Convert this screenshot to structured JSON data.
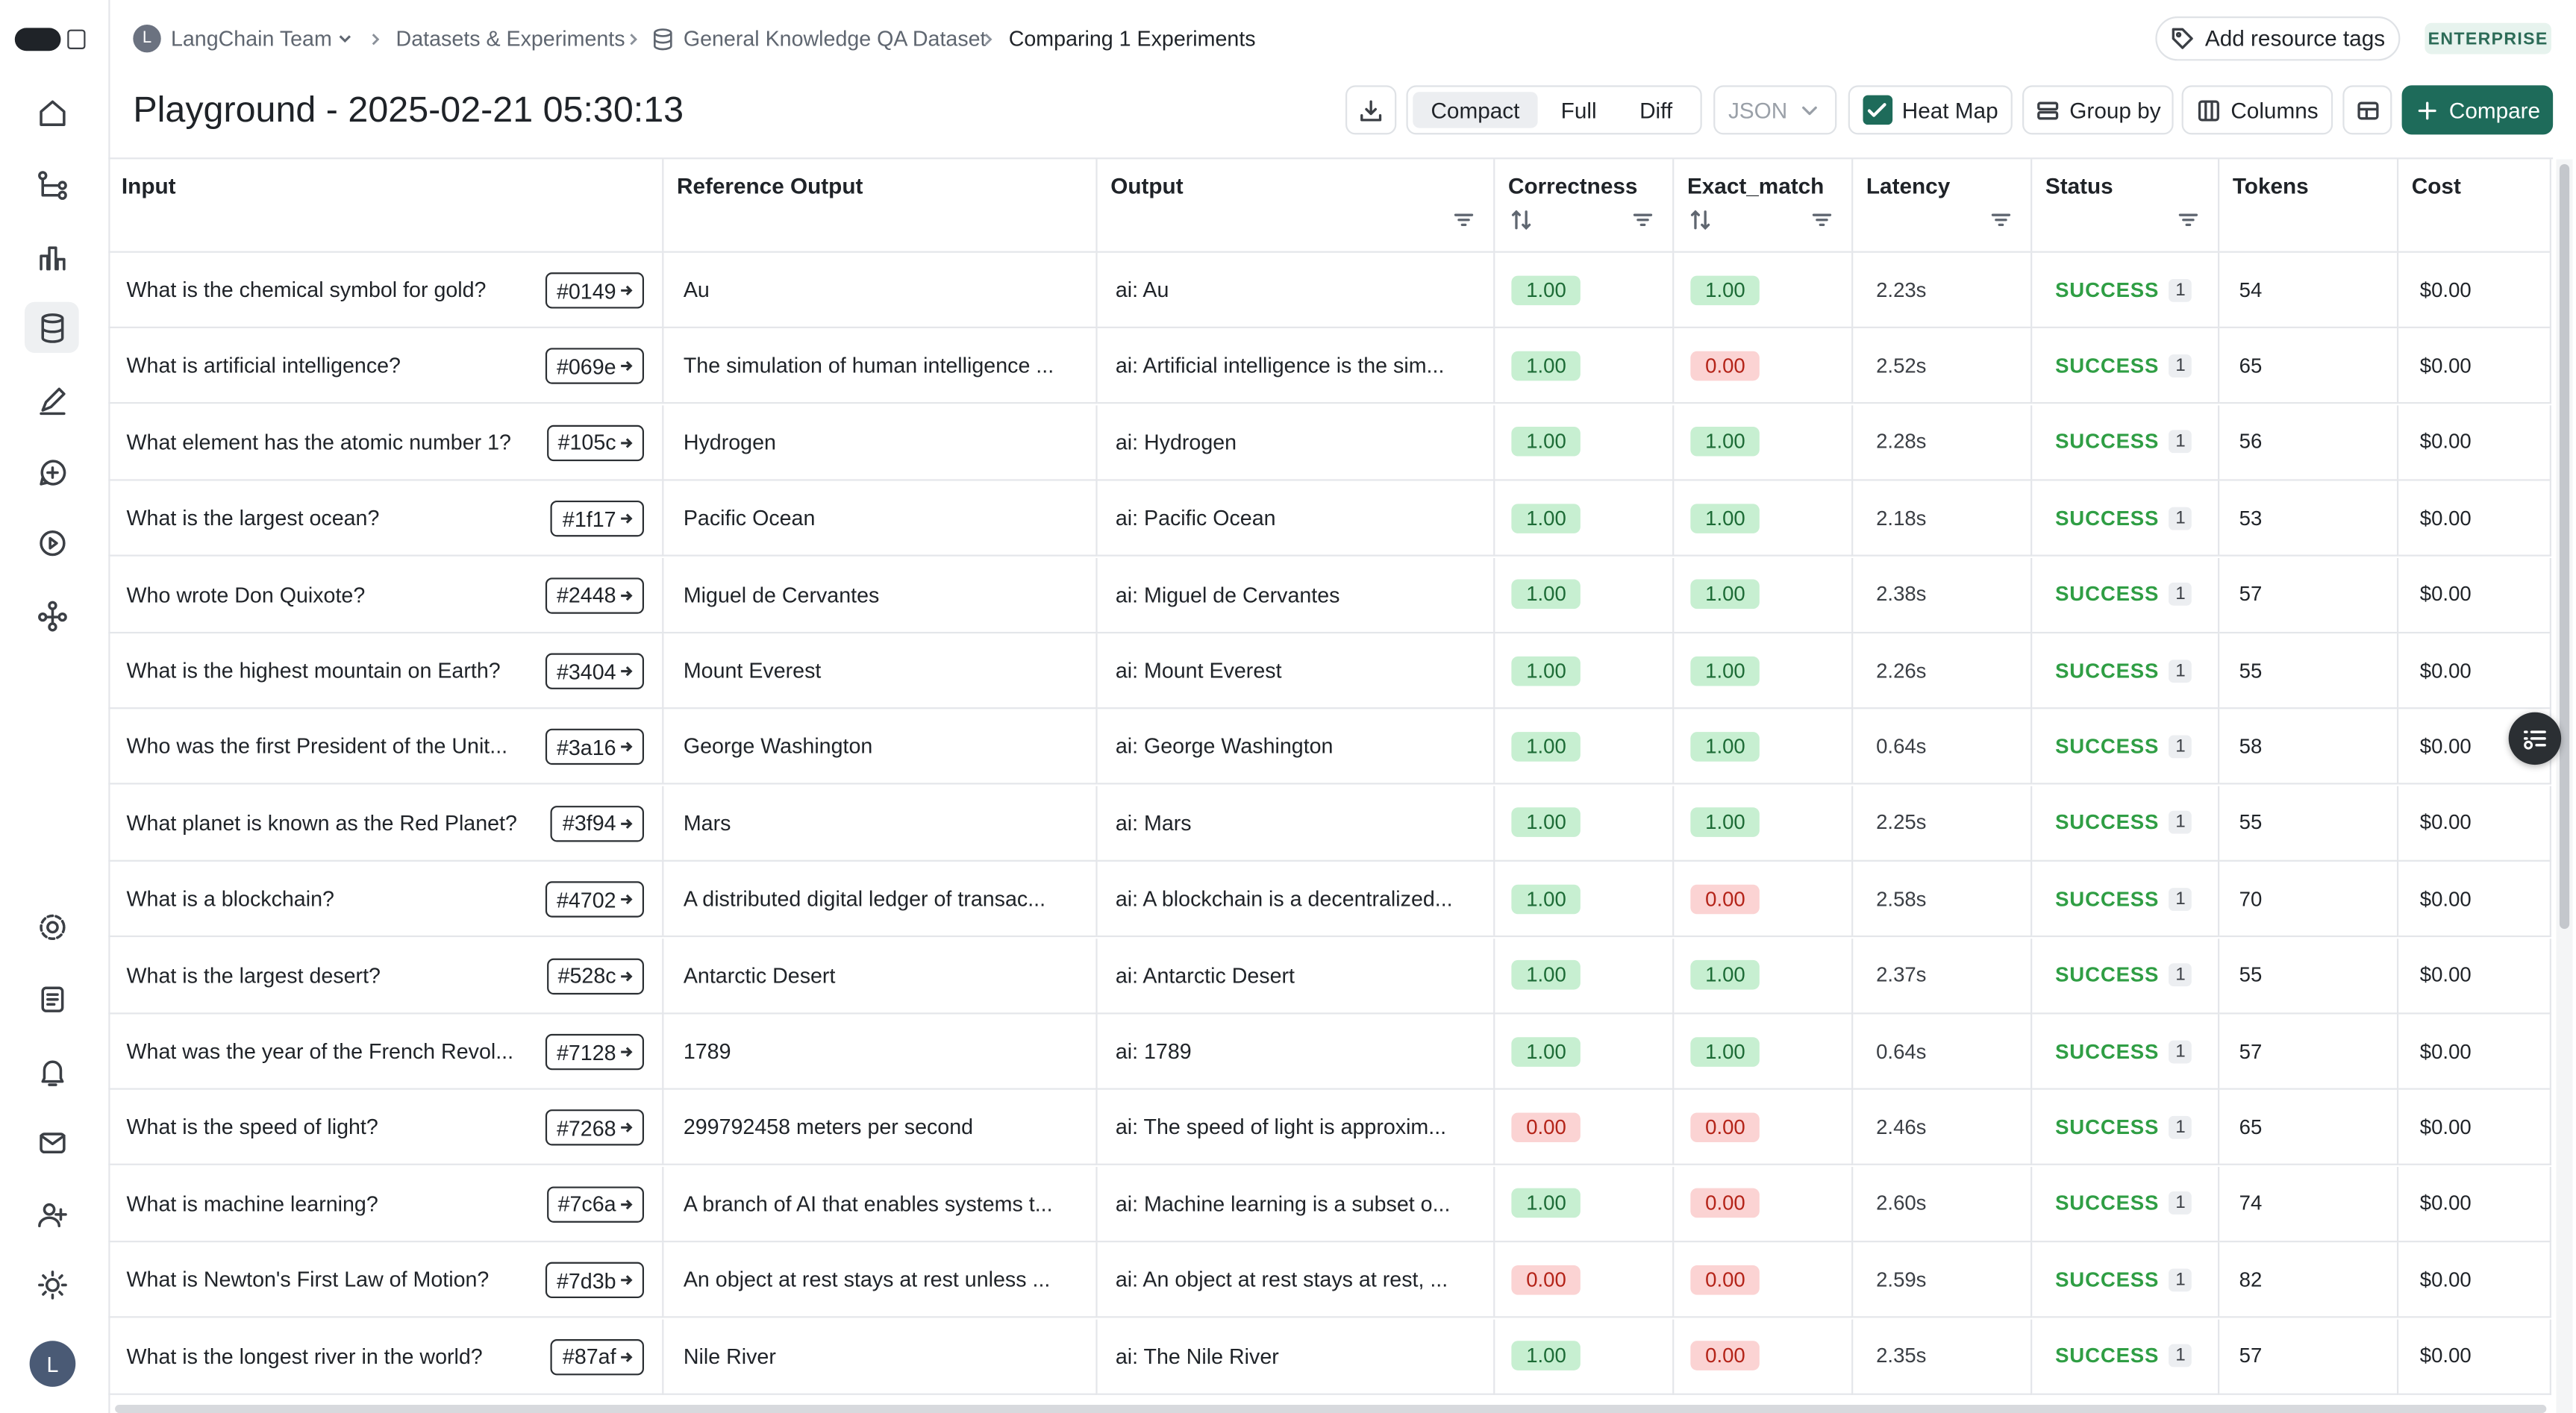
{
  "sidebar": {
    "avatar": "L"
  },
  "breadcrumb": {
    "workspace_initial": "L",
    "workspace": "LangChain Team",
    "items": [
      "Datasets & Experiments",
      "General Knowledge QA Dataset",
      "Comparing 1 Experiments"
    ]
  },
  "header_actions": {
    "tags": "Add resource tags",
    "plan": "ENTERPRISE"
  },
  "title": "Playground - 2025-02-21 05:30:13",
  "toolbar": {
    "views": [
      "Compact",
      "Full",
      "Diff"
    ],
    "format": "JSON",
    "heat_map": "Heat Map",
    "group_by": "Group by",
    "columns": "Columns",
    "compare": "Compare"
  },
  "table": {
    "columns": [
      "Input",
      "Reference Output",
      "Output",
      "Correctness",
      "Exact_match",
      "Latency",
      "Status",
      "Tokens",
      "Cost"
    ],
    "rows": [
      {
        "input": "What is the chemical symbol for gold?",
        "id": "#0149",
        "reference": "Au",
        "output": "ai: Au",
        "correctness": "1.00",
        "exact_match": "1.00",
        "latency": "2.23s",
        "status": "SUCCESS",
        "status_count": "1",
        "tokens": "54",
        "cost": "$0.00"
      },
      {
        "input": "What is artificial intelligence?",
        "id": "#069e",
        "reference": "The simulation of human intelligence ...",
        "output": "ai: Artificial intelligence is the sim...",
        "correctness": "1.00",
        "exact_match": "0.00",
        "latency": "2.52s",
        "status": "SUCCESS",
        "status_count": "1",
        "tokens": "65",
        "cost": "$0.00"
      },
      {
        "input": "What element has the atomic number 1?",
        "id": "#105c",
        "reference": "Hydrogen",
        "output": "ai: Hydrogen",
        "correctness": "1.00",
        "exact_match": "1.00",
        "latency": "2.28s",
        "status": "SUCCESS",
        "status_count": "1",
        "tokens": "56",
        "cost": "$0.00"
      },
      {
        "input": "What is the largest ocean?",
        "id": "#1f17",
        "reference": "Pacific Ocean",
        "output": "ai: Pacific Ocean",
        "correctness": "1.00",
        "exact_match": "1.00",
        "latency": "2.18s",
        "status": "SUCCESS",
        "status_count": "1",
        "tokens": "53",
        "cost": "$0.00"
      },
      {
        "input": "Who wrote Don Quixote?",
        "id": "#2448",
        "reference": "Miguel de Cervantes",
        "output": "ai: Miguel de Cervantes",
        "correctness": "1.00",
        "exact_match": "1.00",
        "latency": "2.38s",
        "status": "SUCCESS",
        "status_count": "1",
        "tokens": "57",
        "cost": "$0.00"
      },
      {
        "input": "What is the highest mountain on Earth?",
        "id": "#3404",
        "reference": "Mount Everest",
        "output": "ai: Mount Everest",
        "correctness": "1.00",
        "exact_match": "1.00",
        "latency": "2.26s",
        "status": "SUCCESS",
        "status_count": "1",
        "tokens": "55",
        "cost": "$0.00"
      },
      {
        "input": "Who was the first President of the Unit...",
        "id": "#3a16",
        "reference": "George Washington",
        "output": "ai: George Washington",
        "correctness": "1.00",
        "exact_match": "1.00",
        "latency": "0.64s",
        "status": "SUCCESS",
        "status_count": "1",
        "tokens": "58",
        "cost": "$0.00"
      },
      {
        "input": "What planet is known as the Red Planet?",
        "id": "#3f94",
        "reference": "Mars",
        "output": "ai: Mars",
        "correctness": "1.00",
        "exact_match": "1.00",
        "latency": "2.25s",
        "status": "SUCCESS",
        "status_count": "1",
        "tokens": "55",
        "cost": "$0.00"
      },
      {
        "input": "What is a blockchain?",
        "id": "#4702",
        "reference": "A distributed digital ledger of transac...",
        "output": "ai: A blockchain is a decentralized...",
        "correctness": "1.00",
        "exact_match": "0.00",
        "latency": "2.58s",
        "status": "SUCCESS",
        "status_count": "1",
        "tokens": "70",
        "cost": "$0.00"
      },
      {
        "input": "What is the largest desert?",
        "id": "#528c",
        "reference": "Antarctic Desert",
        "output": "ai: Antarctic Desert",
        "correctness": "1.00",
        "exact_match": "1.00",
        "latency": "2.37s",
        "status": "SUCCESS",
        "status_count": "1",
        "tokens": "55",
        "cost": "$0.00"
      },
      {
        "input": "What was the year of the French Revol...",
        "id": "#7128",
        "reference": "1789",
        "output": "ai: 1789",
        "correctness": "1.00",
        "exact_match": "1.00",
        "latency": "0.64s",
        "status": "SUCCESS",
        "status_count": "1",
        "tokens": "57",
        "cost": "$0.00"
      },
      {
        "input": "What is the speed of light?",
        "id": "#7268",
        "reference": "299792458 meters per second",
        "output": "ai: The speed of light is approxim...",
        "correctness": "0.00",
        "exact_match": "0.00",
        "latency": "2.46s",
        "status": "SUCCESS",
        "status_count": "1",
        "tokens": "65",
        "cost": "$0.00"
      },
      {
        "input": "What is machine learning?",
        "id": "#7c6a",
        "reference": "A branch of AI that enables systems t...",
        "output": "ai: Machine learning is a subset o...",
        "correctness": "1.00",
        "exact_match": "0.00",
        "latency": "2.60s",
        "status": "SUCCESS",
        "status_count": "1",
        "tokens": "74",
        "cost": "$0.00"
      },
      {
        "input": "What is Newton's First Law of Motion?",
        "id": "#7d3b",
        "reference": "An object at rest stays at rest unless ...",
        "output": "ai: An object at rest stays at rest, ...",
        "correctness": "0.00",
        "exact_match": "0.00",
        "latency": "2.59s",
        "status": "SUCCESS",
        "status_count": "1",
        "tokens": "82",
        "cost": "$0.00"
      },
      {
        "input": "What is the longest river in the world?",
        "id": "#87af",
        "reference": "Nile River",
        "output": "ai: The Nile River",
        "correctness": "1.00",
        "exact_match": "0.00",
        "latency": "2.35s",
        "status": "SUCCESS",
        "status_count": "1",
        "tokens": "57",
        "cost": "$0.00"
      }
    ]
  }
}
